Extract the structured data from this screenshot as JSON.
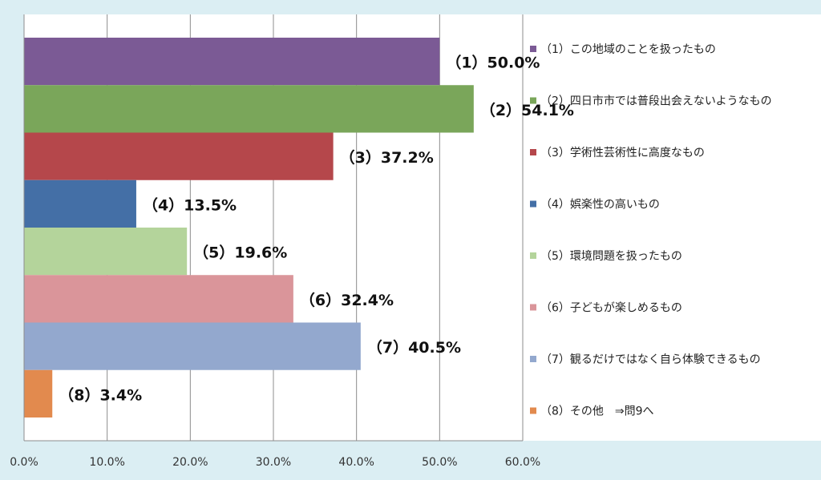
{
  "chart_data": {
    "type": "bar",
    "orientation": "horizontal",
    "categories": [
      "（1）",
      "（2）",
      "（3）",
      "（4）",
      "（5）",
      "（6）",
      "（7）",
      "（8）"
    ],
    "values": [
      50.0,
      54.1,
      37.2,
      13.5,
      19.6,
      32.4,
      40.5,
      3.4
    ],
    "data_labels": [
      "（1）50.0%",
      "（2）54.1%",
      "（3）37.2%",
      "（4）13.5%",
      "（5）19.6%",
      "（6）32.4%",
      "（7）40.5%",
      "（8）3.4%"
    ],
    "colors": [
      "#7b5a95",
      "#7aa65a",
      "#b5474b",
      "#446fa6",
      "#b4d49b",
      "#da959a",
      "#93a8ce",
      "#e28a4e"
    ],
    "legend": [
      "（1）この地域のことを扱ったもの",
      "（2）四日市市では普段出会えないようなもの",
      "（3）学術性芸術性に高度なもの",
      "（4）娯楽性の高いもの",
      "（5）環境問題を扱ったもの",
      "（6）子どもが楽しめるもの",
      "（7）観るだけではなく自ら体験できるもの",
      "（8）その他　⇒問9へ"
    ],
    "legend_position": "right",
    "x_ticks": [
      "0.0%",
      "10.0%",
      "20.0%",
      "30.0%",
      "40.0%",
      "50.0%",
      "60.0%"
    ],
    "xlim": [
      0,
      60
    ],
    "grid": true,
    "title": "",
    "xlabel": "",
    "ylabel": ""
  }
}
